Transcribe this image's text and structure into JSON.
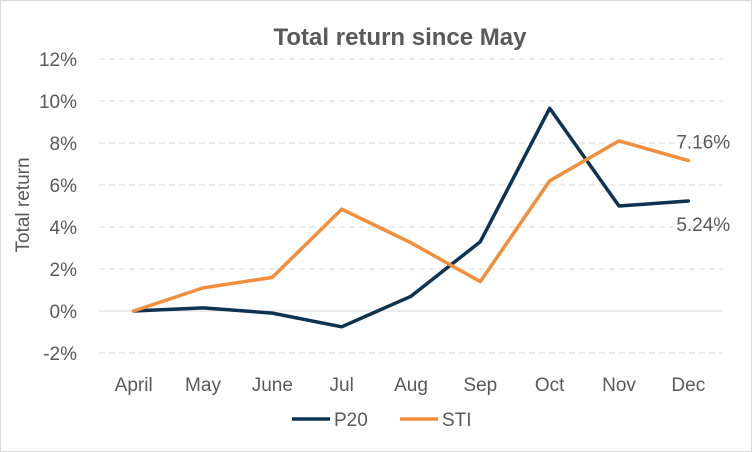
{
  "chart_data": {
    "type": "line",
    "title": "Total return since May",
    "xlabel": "",
    "ylabel": "Total return",
    "categories": [
      "April",
      "May",
      "June",
      "Jul",
      "Aug",
      "Sep",
      "Oct",
      "Nov",
      "Dec"
    ],
    "ylim": [
      -2,
      12
    ],
    "yticks": [
      -2,
      0,
      2,
      4,
      6,
      8,
      10,
      12
    ],
    "ytick_labels": [
      "-2%",
      "0%",
      "2%",
      "4%",
      "6%",
      "8%",
      "10%",
      "12%"
    ],
    "grid": true,
    "legend_position": "bottom",
    "series": [
      {
        "name": "P20",
        "color": "#0c3350",
        "values": [
          0.0,
          0.15,
          -0.1,
          -0.75,
          0.7,
          3.3,
          9.65,
          5.0,
          5.24
        ],
        "end_label": "5.24%"
      },
      {
        "name": "STI",
        "color": "#f28e3c",
        "values": [
          0.0,
          1.1,
          1.6,
          4.85,
          3.25,
          1.4,
          6.2,
          8.1,
          7.16
        ],
        "end_label": "7.16%"
      }
    ]
  }
}
